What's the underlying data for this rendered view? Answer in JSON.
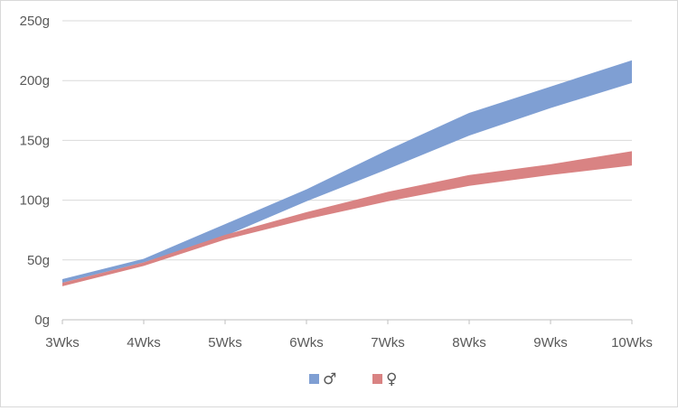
{
  "chart_data": {
    "type": "area",
    "title": "",
    "xlabel": "",
    "ylabel": "",
    "categories": [
      "3Wks",
      "4Wks",
      "5Wks",
      "6Wks",
      "7Wks",
      "8Wks",
      "9Wks",
      "10Wks"
    ],
    "ylim": [
      0,
      250
    ],
    "yticks": [
      0,
      50,
      100,
      150,
      200,
      250
    ],
    "ytick_labels": [
      "0g",
      "50g",
      "100g",
      "150g",
      "200g",
      "250g"
    ],
    "grid": true,
    "legend_position": "bottom",
    "series": [
      {
        "name": "♂",
        "color": "#7f9fd3",
        "low": [
          31,
          48,
          70,
          99,
          126,
          154,
          177,
          198
        ],
        "high": [
          34,
          51,
          80,
          109,
          142,
          173,
          195,
          217
        ]
      },
      {
        "name": "♀",
        "color": "#d98383",
        "low": [
          28,
          45,
          67,
          84,
          99,
          112,
          121,
          129
        ],
        "high": [
          31,
          48,
          71,
          90,
          107,
          121,
          130,
          141
        ]
      }
    ]
  }
}
